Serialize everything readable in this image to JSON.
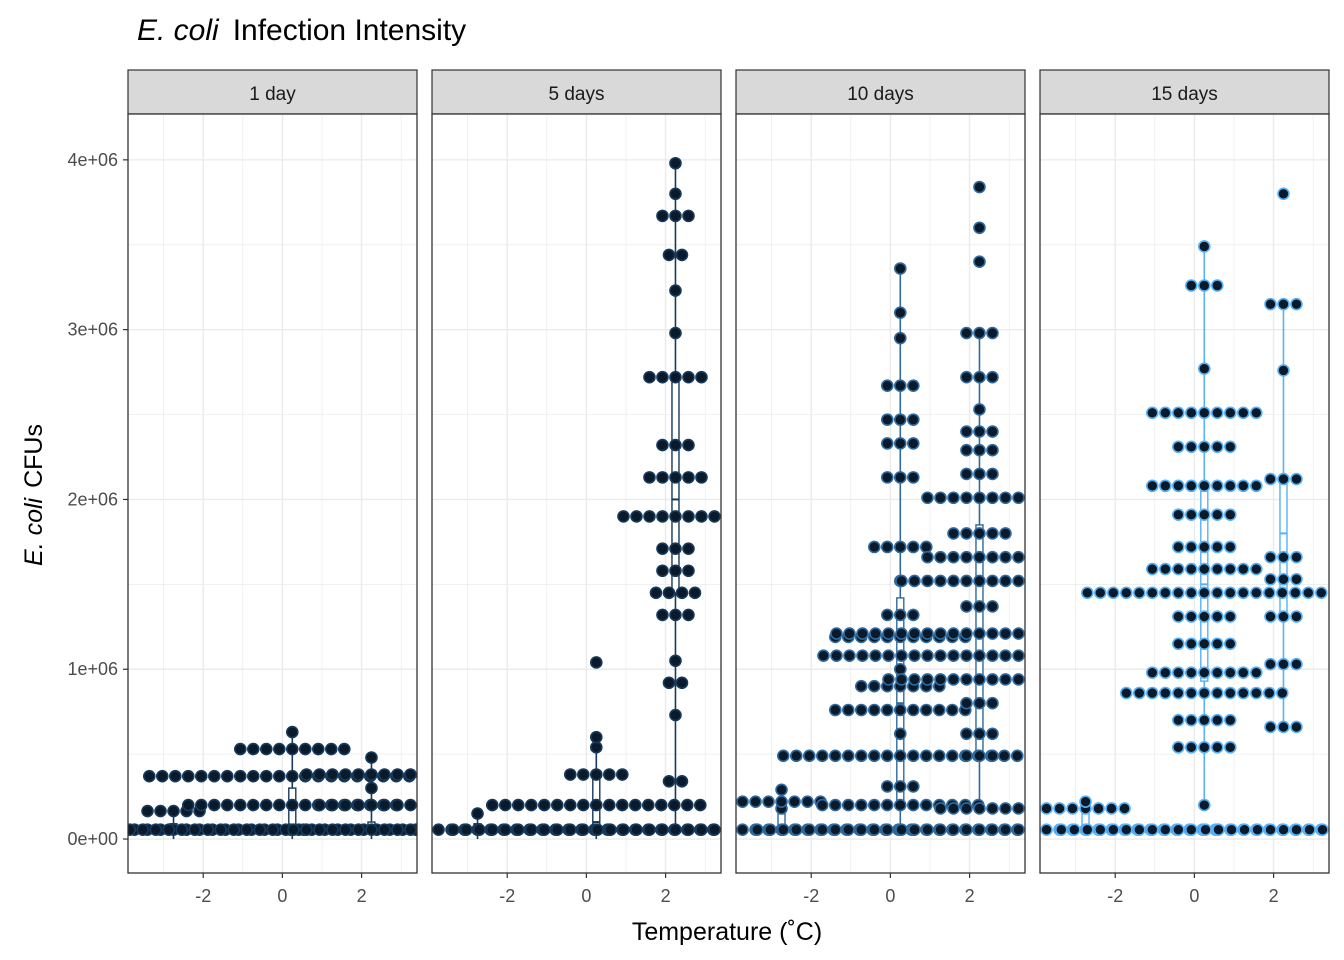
{
  "chart_data": {
    "type": "boxplot-dotplot",
    "title": "Infection Intensity",
    "title_italic_prefix": "E. coli",
    "xlabel": "Temperature (˚C)",
    "ylabel": "CFUs",
    "ylabel_italic_prefix": "E. coli",
    "xlim": [
      -3.9,
      3.4
    ],
    "ylim": [
      -200000,
      4270000
    ],
    "x_ticks": [
      -2,
      0,
      2
    ],
    "x_tick_labels": [
      "-2",
      "0",
      "2"
    ],
    "y_ticks": [
      0,
      1000000,
      2000000,
      3000000,
      4000000
    ],
    "y_tick_labels": [
      "0e+00",
      "1e+06",
      "2e+06",
      "3e+06",
      "4e+06"
    ],
    "grid": true,
    "legend": "none",
    "colors": {
      "dot_fill": "#0b1a2a",
      "dark_blue": "#163a5c",
      "mid_blue": "#2e6a9e",
      "light_blue": "#56b1f7",
      "strip_bg": "#d9d9d9",
      "grid": "#ebebeb"
    },
    "panels": [
      {
        "label": "1 day",
        "color": "#163a5c",
        "groups": [
          {
            "temp": -2.75,
            "box": {
              "min": 0,
              "q1": 40000,
              "median": 55000,
              "q3": 90000,
              "max": 160000
            },
            "dot_rows": [
              {
                "y": 55000,
                "n": 21
              },
              {
                "y": 165000,
                "n": 5
              }
            ]
          },
          {
            "temp": 0.25,
            "box": {
              "min": 0,
              "q1": 40000,
              "median": 60000,
              "q3": 300000,
              "max": 620000
            },
            "dot_rows": [
              {
                "y": 55000,
                "n": 26
              },
              {
                "y": 200000,
                "n": 17
              },
              {
                "y": 370000,
                "n": 23
              },
              {
                "y": 530000,
                "n": 9
              },
              {
                "y": 630000,
                "n": 1
              }
            ]
          },
          {
            "temp": 2.25,
            "box": {
              "min": 0,
              "q1": 30000,
              "median": 55000,
              "q3": 100000,
              "max": 480000
            },
            "dot_rows": [
              {
                "y": 55000,
                "n": 13
              },
              {
                "y": 200000,
                "n": 9
              },
              {
                "y": 300000,
                "n": 1
              },
              {
                "y": 380000,
                "n": 11
              },
              {
                "y": 480000,
                "n": 1
              }
            ]
          }
        ]
      },
      {
        "label": "5 days",
        "color": "#163a5c",
        "groups": [
          {
            "temp": -2.75,
            "box": {
              "min": 0,
              "q1": 40000,
              "median": 55000,
              "q3": 90000,
              "max": 150000
            },
            "dot_rows": [
              {
                "y": 55000,
                "n": 21
              },
              {
                "y": 150000,
                "n": 1
              }
            ]
          },
          {
            "temp": 0.25,
            "box": {
              "min": 0,
              "q1": 60000,
              "median": 100000,
              "q3": 380000,
              "max": 620000
            },
            "dot_rows": [
              {
                "y": 55000,
                "n": 23
              },
              {
                "y": 200000,
                "n": 17
              },
              {
                "y": 380000,
                "n": 5
              },
              {
                "y": 540000,
                "n": 1
              },
              {
                "y": 600000,
                "n": 1
              },
              {
                "y": 1040000,
                "n": 1
              }
            ]
          },
          {
            "temp": 2.25,
            "box": {
              "min": 40000,
              "q1": 1450000,
              "median": 2000000,
              "q3": 2700000,
              "max": 3980000
            },
            "dot_rows": [
              {
                "y": 55000,
                "n": 13
              },
              {
                "y": 340000,
                "n": 2
              },
              {
                "y": 730000,
                "n": 1
              },
              {
                "y": 920000,
                "n": 2
              },
              {
                "y": 1050000,
                "n": 1
              },
              {
                "y": 1320000,
                "n": 3
              },
              {
                "y": 1450000,
                "n": 4
              },
              {
                "y": 1580000,
                "n": 3
              },
              {
                "y": 1710000,
                "n": 3
              },
              {
                "y": 1900000,
                "n": 9
              },
              {
                "y": 2130000,
                "n": 5
              },
              {
                "y": 2320000,
                "n": 3
              },
              {
                "y": 2720000,
                "n": 5
              },
              {
                "y": 2980000,
                "n": 1
              },
              {
                "y": 3230000,
                "n": 1
              },
              {
                "y": 3440000,
                "n": 2
              },
              {
                "y": 3670000,
                "n": 3
              },
              {
                "y": 3800000,
                "n": 1
              },
              {
                "y": 3980000,
                "n": 1
              }
            ]
          }
        ]
      },
      {
        "label": "10 days",
        "color": "#2e6a9e",
        "groups": [
          {
            "temp": -2.75,
            "box": {
              "min": 30000,
              "q1": 55000,
              "median": 150000,
              "q3": 200000,
              "max": 290000
            },
            "dot_rows": [
              {
                "y": 55000,
                "n": 21
              },
              {
                "y": 180000,
                "n": 1
              },
              {
                "y": 220000,
                "n": 7
              },
              {
                "y": 290000,
                "n": 1
              }
            ]
          },
          {
            "temp": 0.25,
            "box": {
              "min": 30000,
              "q1": 200000,
              "median": 800000,
              "q3": 1420000,
              "max": 3360000
            },
            "dot_rows": [
              {
                "y": 55000,
                "n": 23
              },
              {
                "y": 200000,
                "n": 13
              },
              {
                "y": 310000,
                "n": 3
              },
              {
                "y": 490000,
                "n": 19
              },
              {
                "y": 620000,
                "n": 1
              },
              {
                "y": 760000,
                "n": 11
              },
              {
                "y": 900000,
                "n": 7
              },
              {
                "y": 1000000,
                "n": 1
              },
              {
                "y": 1190000,
                "n": 11
              },
              {
                "y": 1320000,
                "n": 3
              },
              {
                "y": 1520000,
                "n": 1
              },
              {
                "y": 1720000,
                "n": 5
              },
              {
                "y": 2130000,
                "n": 3
              },
              {
                "y": 2330000,
                "n": 3
              },
              {
                "y": 2470000,
                "n": 3
              },
              {
                "y": 2670000,
                "n": 3
              },
              {
                "y": 2950000,
                "n": 1
              },
              {
                "y": 3100000,
                "n": 1
              },
              {
                "y": 3360000,
                "n": 1
              }
            ]
          },
          {
            "temp": 2.25,
            "box": {
              "min": 200000,
              "q1": 500000,
              "median": 1200000,
              "q3": 1850000,
              "max": 3000000
            },
            "dot_rows": [
              {
                "y": 55000,
                "n": 13
              },
              {
                "y": 180000,
                "n": 7
              },
              {
                "y": 490000,
                "n": 3
              },
              {
                "y": 620000,
                "n": 3
              },
              {
                "y": 800000,
                "n": 3
              },
              {
                "y": 940000,
                "n": 15
              },
              {
                "y": 1080000,
                "n": 25
              },
              {
                "y": 1210000,
                "n": 23
              },
              {
                "y": 1370000,
                "n": 3
              },
              {
                "y": 1520000,
                "n": 13
              },
              {
                "y": 1660000,
                "n": 9
              },
              {
                "y": 1800000,
                "n": 5
              },
              {
                "y": 2010000,
                "n": 9
              },
              {
                "y": 2150000,
                "n": 3
              },
              {
                "y": 2290000,
                "n": 3
              },
              {
                "y": 2400000,
                "n": 3
              },
              {
                "y": 2530000,
                "n": 1
              },
              {
                "y": 2720000,
                "n": 3
              },
              {
                "y": 2980000,
                "n": 3
              },
              {
                "y": 3400000,
                "n": 1
              },
              {
                "y": 3600000,
                "n": 1
              },
              {
                "y": 3840000,
                "n": 1
              }
            ]
          }
        ]
      },
      {
        "label": "15 days",
        "color": "#56b1f7",
        "groups": [
          {
            "temp": -2.75,
            "box": {
              "min": 30000,
              "q1": 55000,
              "median": 150000,
              "q3": 200000,
              "max": 230000
            },
            "dot_rows": [
              {
                "y": 55000,
                "n": 21
              },
              {
                "y": 180000,
                "n": 7
              },
              {
                "y": 220000,
                "n": 1
              }
            ]
          },
          {
            "temp": 0.25,
            "box": {
              "min": 200000,
              "q1": 930000,
              "median": 1500000,
              "q3": 2050000,
              "max": 3500000
            },
            "dot_rows": [
              {
                "y": 55000,
                "n": 23
              },
              {
                "y": 200000,
                "n": 1
              },
              {
                "y": 540000,
                "n": 5
              },
              {
                "y": 700000,
                "n": 5
              },
              {
                "y": 860000,
                "n": 13
              },
              {
                "y": 980000,
                "n": 9
              },
              {
                "y": 1150000,
                "n": 5
              },
              {
                "y": 1310000,
                "n": 5
              },
              {
                "y": 1450000,
                "n": 19
              },
              {
                "y": 1590000,
                "n": 9
              },
              {
                "y": 1720000,
                "n": 5
              },
              {
                "y": 1910000,
                "n": 5
              },
              {
                "y": 2080000,
                "n": 9
              },
              {
                "y": 2310000,
                "n": 5
              },
              {
                "y": 2510000,
                "n": 9
              },
              {
                "y": 2770000,
                "n": 1
              },
              {
                "y": 3260000,
                "n": 3
              },
              {
                "y": 3490000,
                "n": 1
              }
            ]
          },
          {
            "temp": 2.25,
            "box": {
              "min": 670000,
              "q1": 1300000,
              "median": 1800000,
              "q3": 2100000,
              "max": 3150000
            },
            "dot_rows": [
              {
                "y": 55000,
                "n": 13
              },
              {
                "y": 660000,
                "n": 3
              },
              {
                "y": 1030000,
                "n": 3
              },
              {
                "y": 1310000,
                "n": 3
              },
              {
                "y": 1530000,
                "n": 3
              },
              {
                "y": 1660000,
                "n": 3
              },
              {
                "y": 2120000,
                "n": 3
              },
              {
                "y": 2760000,
                "n": 1
              },
              {
                "y": 3150000,
                "n": 3
              },
              {
                "y": 3800000,
                "n": 1
              }
            ]
          }
        ]
      }
    ]
  }
}
